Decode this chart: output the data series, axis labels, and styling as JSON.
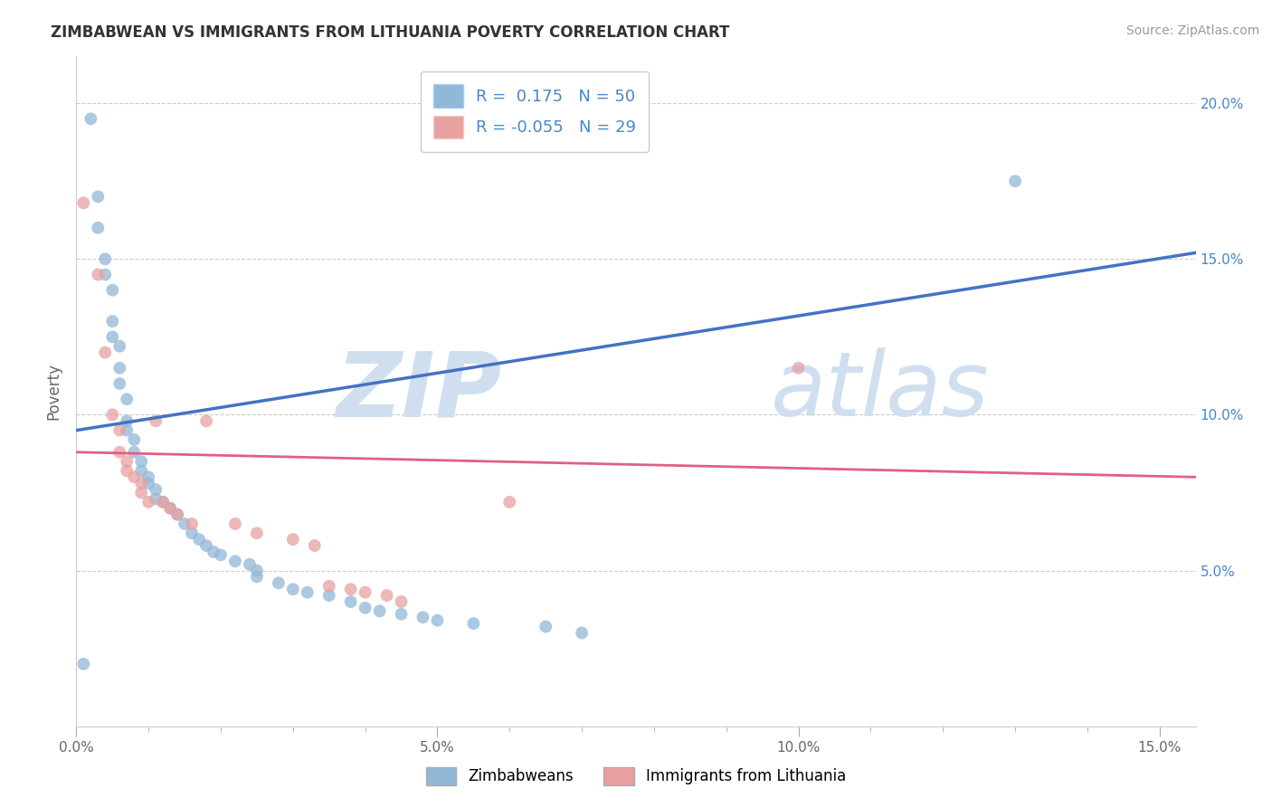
{
  "title": "ZIMBABWEAN VS IMMIGRANTS FROM LITHUANIA POVERTY CORRELATION CHART",
  "source": "Source: ZipAtlas.com",
  "ylabel": "Poverty",
  "blue_R": 0.175,
  "blue_N": 50,
  "pink_R": -0.055,
  "pink_N": 29,
  "blue_color": "#92b8d8",
  "pink_color": "#e8a0a0",
  "blue_line_color": "#4472c4",
  "pink_line_color": "#e06080",
  "blue_label": "Zimbabweans",
  "pink_label": "Immigrants from Lithuania",
  "watermark_zip": "ZIP",
  "watermark_atlas": "atlas",
  "watermark_color": "#d0dff0",
  "xlim": [
    0.0,
    0.155
  ],
  "ylim": [
    0.0,
    0.215
  ],
  "blue_line_x0": 0.0,
  "blue_line_y0": 0.095,
  "blue_line_x1": 0.155,
  "blue_line_y1": 0.152,
  "pink_line_x0": 0.0,
  "pink_line_y0": 0.088,
  "pink_line_x1": 0.155,
  "pink_line_y1": 0.08,
  "blue_x": [
    0.001,
    0.002,
    0.003,
    0.003,
    0.004,
    0.004,
    0.005,
    0.005,
    0.005,
    0.006,
    0.006,
    0.006,
    0.007,
    0.007,
    0.007,
    0.008,
    0.008,
    0.009,
    0.009,
    0.01,
    0.01,
    0.011,
    0.011,
    0.012,
    0.013,
    0.014,
    0.015,
    0.016,
    0.017,
    0.018,
    0.019,
    0.02,
    0.022,
    0.024,
    0.025,
    0.025,
    0.028,
    0.03,
    0.032,
    0.035,
    0.038,
    0.04,
    0.042,
    0.045,
    0.048,
    0.05,
    0.055,
    0.065,
    0.07,
    0.13
  ],
  "blue_y": [
    0.02,
    0.195,
    0.17,
    0.16,
    0.15,
    0.145,
    0.14,
    0.13,
    0.125,
    0.122,
    0.115,
    0.11,
    0.105,
    0.098,
    0.095,
    0.092,
    0.088,
    0.085,
    0.082,
    0.08,
    0.078,
    0.076,
    0.073,
    0.072,
    0.07,
    0.068,
    0.065,
    0.062,
    0.06,
    0.058,
    0.056,
    0.055,
    0.053,
    0.052,
    0.05,
    0.048,
    0.046,
    0.044,
    0.043,
    0.042,
    0.04,
    0.038,
    0.037,
    0.036,
    0.035,
    0.034,
    0.033,
    0.032,
    0.03,
    0.175
  ],
  "pink_x": [
    0.001,
    0.003,
    0.004,
    0.005,
    0.006,
    0.006,
    0.007,
    0.007,
    0.008,
    0.009,
    0.009,
    0.01,
    0.011,
    0.012,
    0.013,
    0.014,
    0.016,
    0.018,
    0.022,
    0.025,
    0.03,
    0.033,
    0.035,
    0.038,
    0.04,
    0.043,
    0.045,
    0.1,
    0.06
  ],
  "pink_y": [
    0.168,
    0.145,
    0.12,
    0.1,
    0.095,
    0.088,
    0.085,
    0.082,
    0.08,
    0.078,
    0.075,
    0.072,
    0.098,
    0.072,
    0.07,
    0.068,
    0.065,
    0.098,
    0.065,
    0.062,
    0.06,
    0.058,
    0.045,
    0.044,
    0.043,
    0.042,
    0.04,
    0.115,
    0.072
  ]
}
